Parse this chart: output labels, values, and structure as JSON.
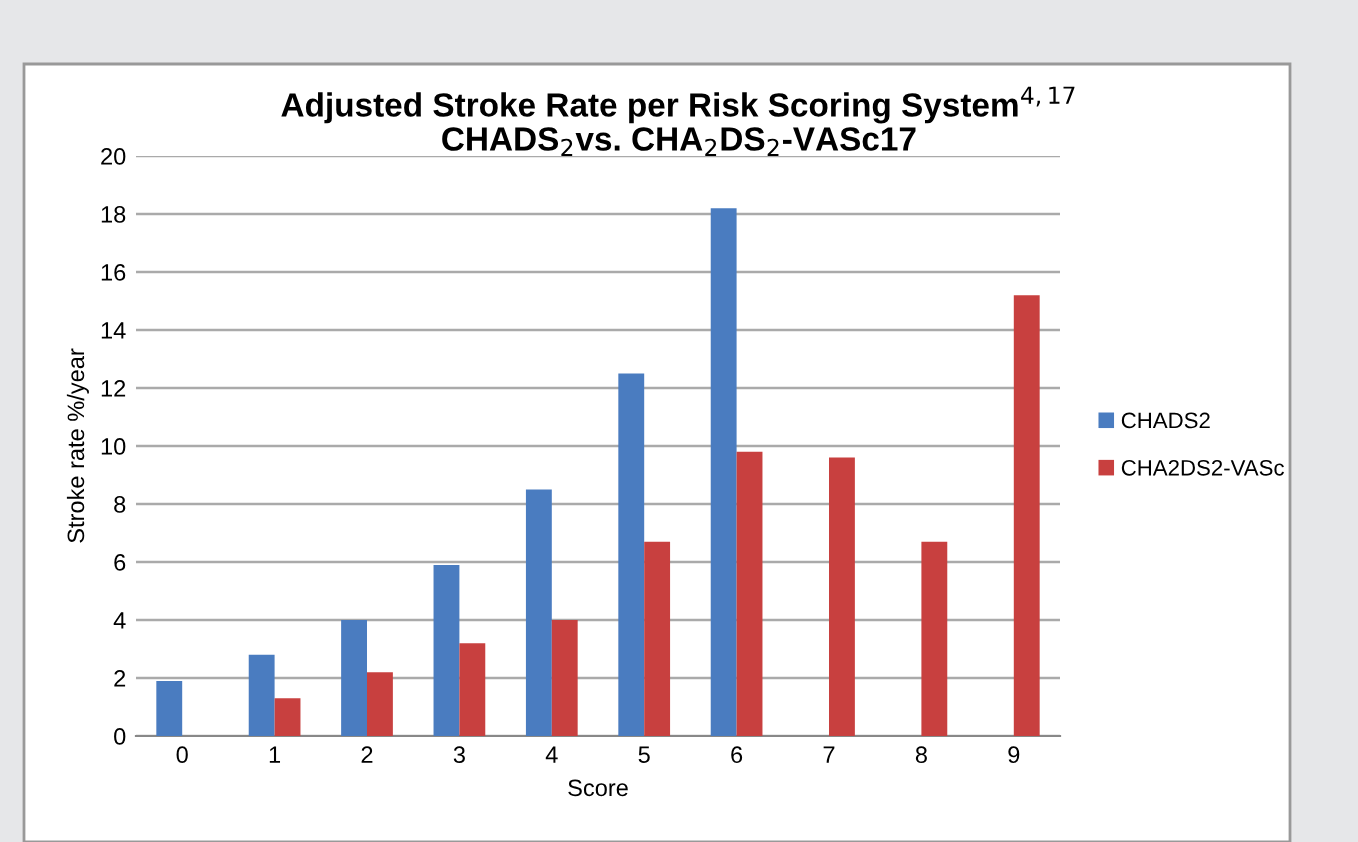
{
  "chart_data": {
    "type": "bar",
    "title": "Adjusted Stroke Rate per Risk Scoring System$^{4,17}$\nCHADS$_{2}$vs. CHA$_{2}$DS$_{2}$-VASc17",
    "xlabel": "Score",
    "ylabel": "Stroke rate %/year",
    "categories": [
      "0",
      "1",
      "2",
      "3",
      "4",
      "5",
      "6",
      "7",
      "8",
      "9"
    ],
    "series": [
      {
        "name": "CHADS2",
        "color": "#4a7cc0",
        "values": [
          1.9,
          2.8,
          4.0,
          5.9,
          8.5,
          12.5,
          18.2,
          null,
          null,
          null
        ]
      },
      {
        "name": "CHA2DS2-VASc",
        "color": "#c8403f",
        "values": [
          0,
          1.3,
          2.2,
          3.2,
          4.0,
          6.7,
          9.8,
          9.6,
          6.7,
          15.2
        ]
      }
    ],
    "ylim": [
      0,
      20
    ],
    "yticks": [
      0,
      2,
      4,
      6,
      8,
      10,
      12,
      14,
      16,
      18,
      20
    ],
    "grid": "y",
    "legend": "right"
  }
}
